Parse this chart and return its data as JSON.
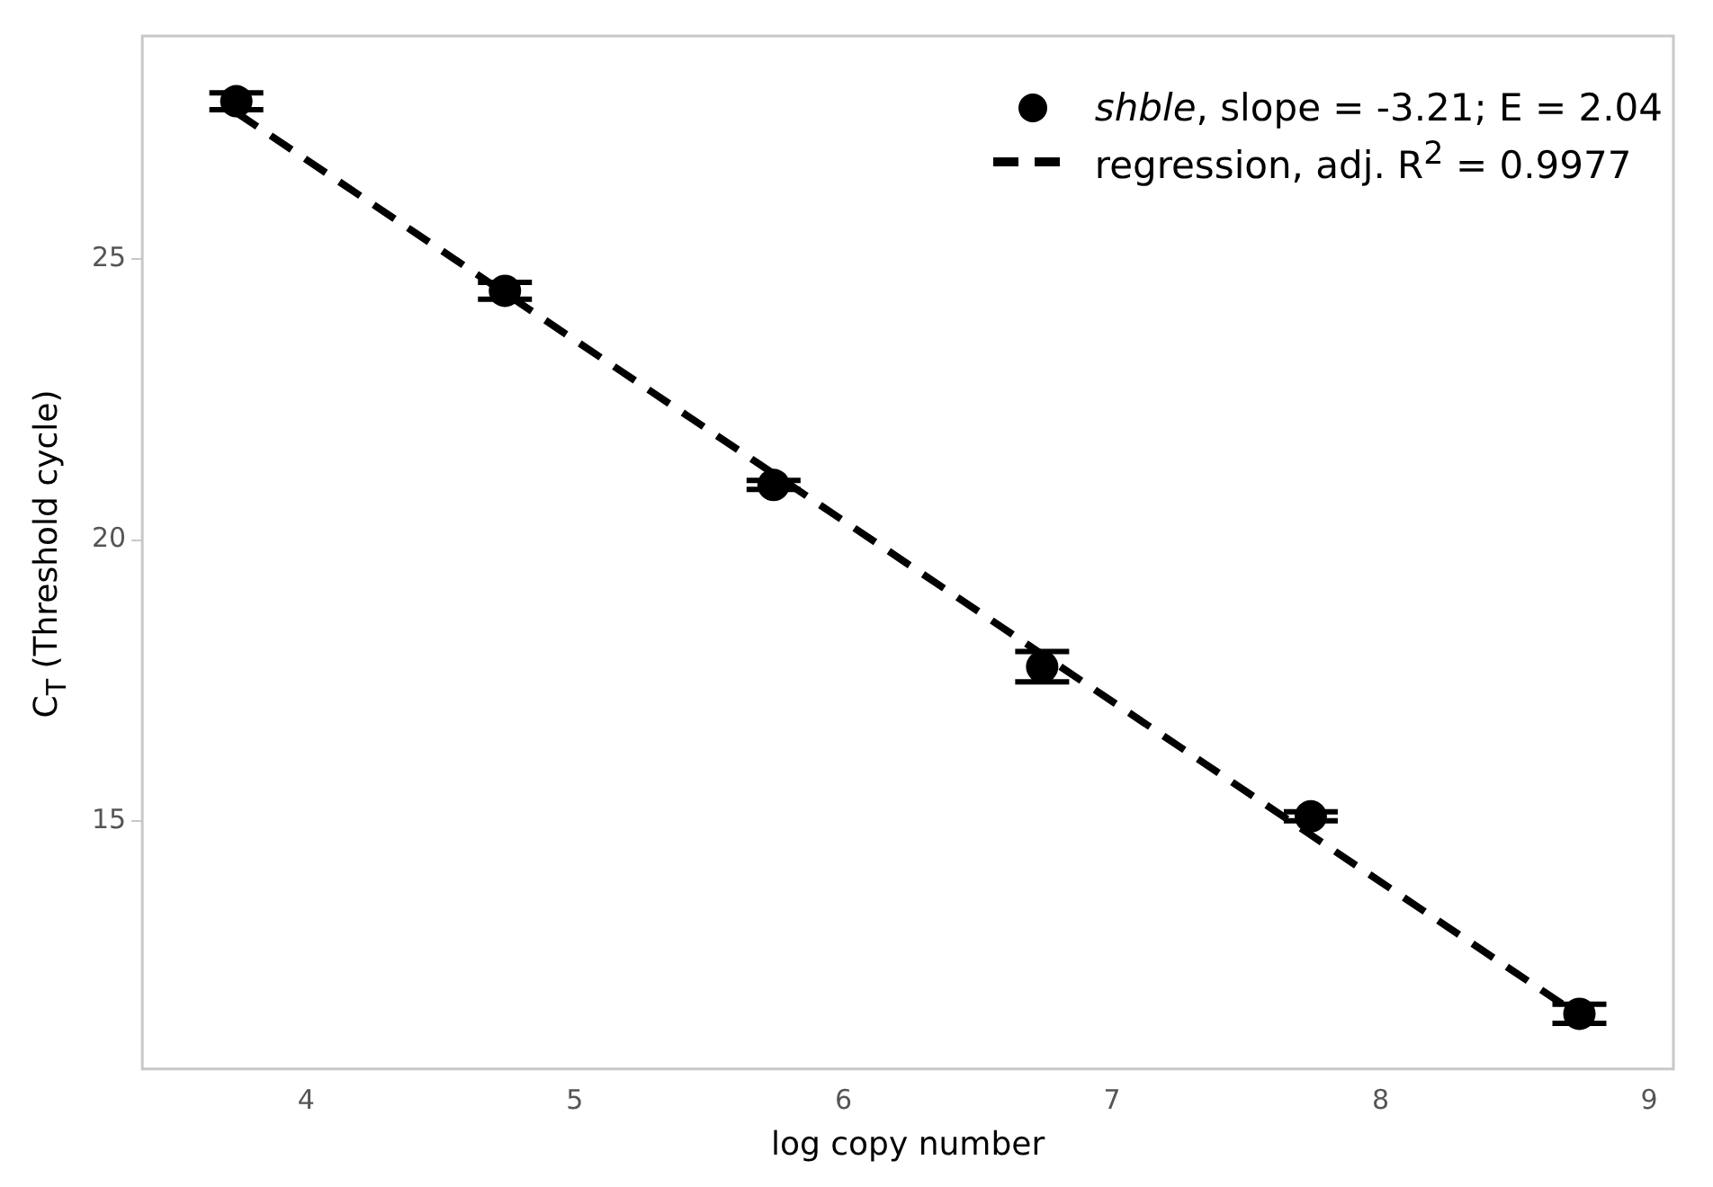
{
  "chart_data": {
    "type": "scatter",
    "xlabel": "log copy number",
    "ylabel": "C$_{T}$  (Threshold cycle)",
    "xlim": [
      3.39,
      9.09
    ],
    "xticks": [
      4,
      5,
      6,
      7,
      8,
      9
    ],
    "ylim": [
      10.6,
      28.96
    ],
    "yticks": [
      15,
      20,
      25
    ],
    "grid": false,
    "legend": "top right",
    "series": [
      {
        "name": "shble, slope = -3.21; E = 2.04",
        "type": "scatter",
        "color": "#000000",
        "marker": "circle",
        "x": [
          3.74,
          4.74,
          5.74,
          6.74,
          7.74,
          8.74
        ],
        "values": [
          27.8,
          24.43,
          20.98,
          17.75,
          15.09,
          11.58
        ],
        "errors": [
          0.15,
          0.15,
          0.08,
          0.27,
          0.08,
          0.17
        ]
      },
      {
        "name": "regression, adj. R$^{2}$ = 0.9977",
        "type": "line",
        "color": "#000000",
        "line_style": "dashed",
        "marker": "none",
        "x": [
          3.74,
          8.74
        ],
        "values": [
          27.6,
          11.55
        ]
      }
    ]
  }
}
